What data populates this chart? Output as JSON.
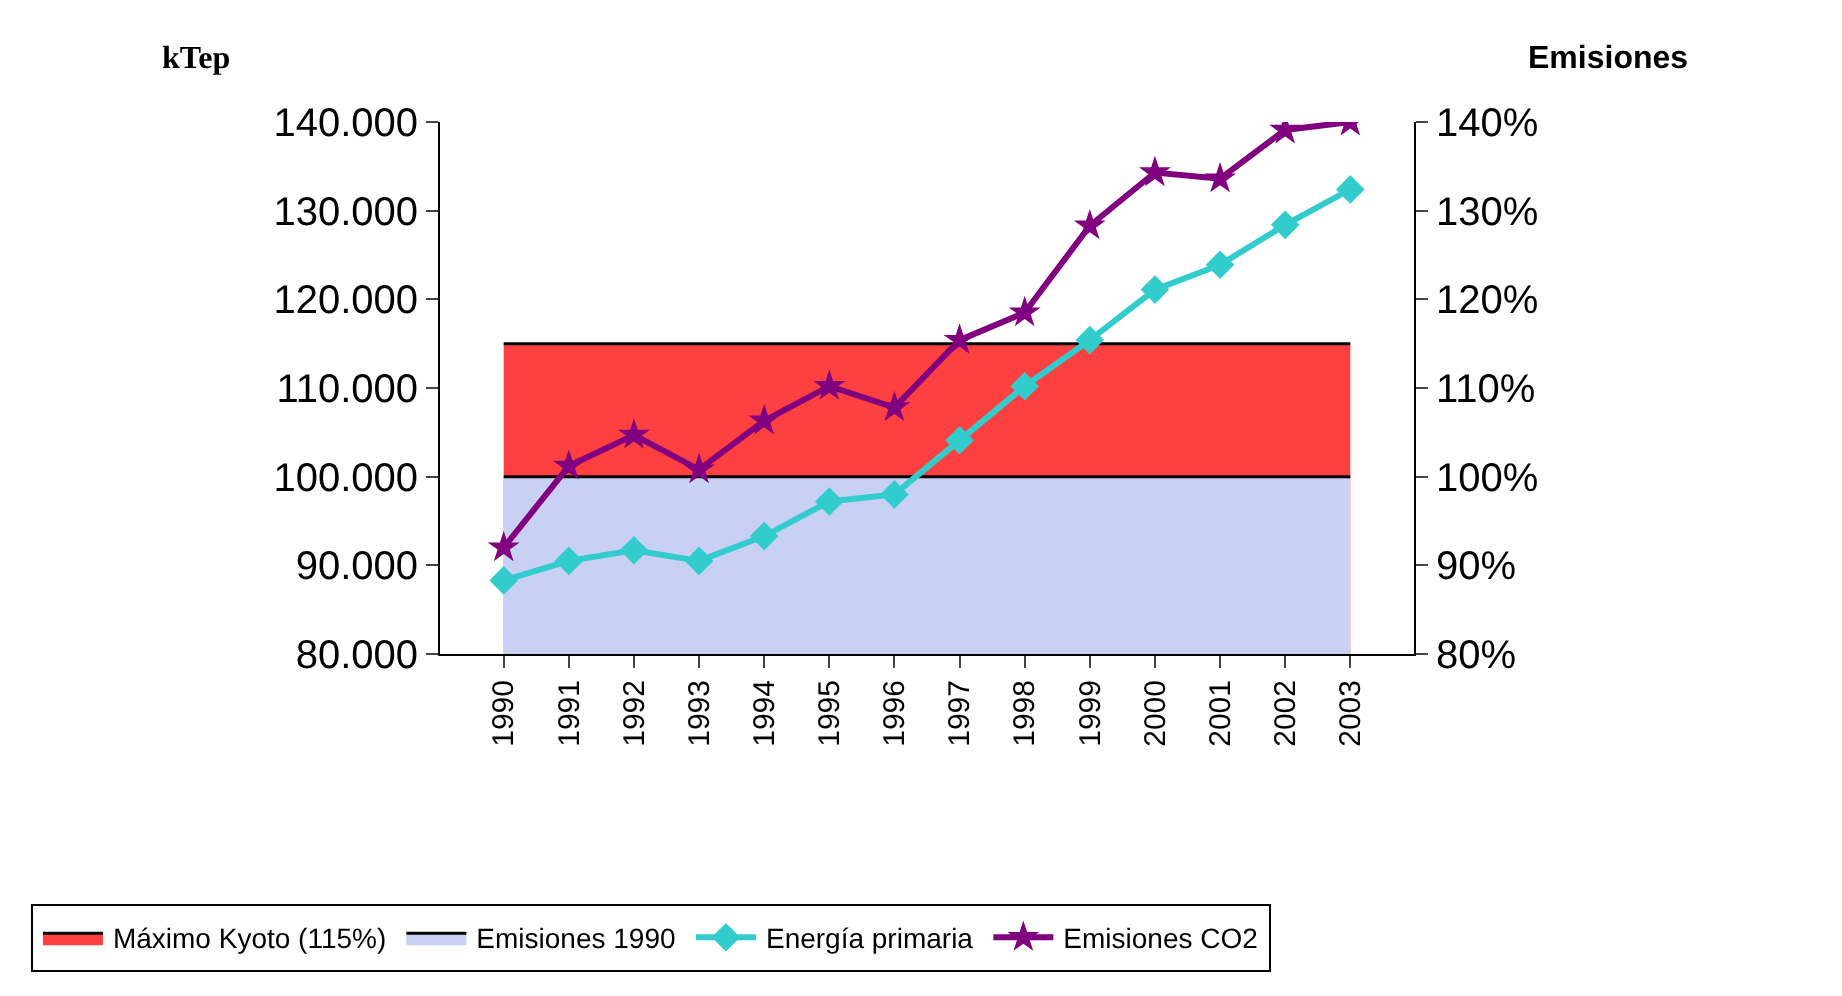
{
  "chart_data": {
    "type": "line",
    "ylabel": "kTep",
    "y2label": "Emisiones",
    "categories": [
      "1990",
      "1991",
      "1992",
      "1993",
      "1994",
      "1995",
      "1996",
      "1997",
      "1998",
      "1999",
      "2000",
      "2001",
      "2002",
      "2003"
    ],
    "series": [
      {
        "name": "Máximo Kyoto (115%)",
        "type": "area",
        "axis": "y2",
        "color": "#ff4040",
        "marker": "none",
        "values": [
          115,
          115,
          115,
          115,
          115,
          115,
          115,
          115,
          115,
          115,
          115,
          115,
          115,
          115
        ]
      },
      {
        "name": "Emisiones 1990",
        "type": "area",
        "axis": "y2",
        "color": "#c8d0f4",
        "marker": "none",
        "values": [
          100,
          100,
          100,
          100,
          100,
          100,
          100,
          100,
          100,
          100,
          100,
          100,
          100,
          100
        ]
      },
      {
        "name": "Energía primaria",
        "color": "#33cccc",
        "marker": "diamond",
        "values": [
          88300,
          90500,
          91700,
          90500,
          93300,
          97200,
          98000,
          104100,
          110200,
          115400,
          121100,
          123900,
          128400,
          132400
        ]
      },
      {
        "name": "Emisiones CO2",
        "axis": "y2",
        "color": "#800080",
        "marker": "star",
        "values": [
          92,
          101.2,
          104.7,
          100.8,
          106.3,
          110.2,
          107.8,
          115.4,
          118.5,
          128.3,
          134.3,
          133.6,
          139.1,
          140
        ]
      }
    ],
    "ylim": [
      80000,
      140000
    ],
    "yticks": [
      {
        "value": 80000,
        "label": "80.000"
      },
      {
        "value": 90000,
        "label": "90.000"
      },
      {
        "value": 100000,
        "label": "100.000"
      },
      {
        "value": 110000,
        "label": "110.000"
      },
      {
        "value": 120000,
        "label": "120.000"
      },
      {
        "value": 130000,
        "label": "130.000"
      },
      {
        "value": 140000,
        "label": "140.000"
      }
    ],
    "y2lim": [
      80,
      140
    ],
    "y2ticks": [
      {
        "value": 80,
        "label": "80%"
      },
      {
        "value": 90,
        "label": "90%"
      },
      {
        "value": 100,
        "label": "100%"
      },
      {
        "value": 110,
        "label": "110%"
      },
      {
        "value": 120,
        "label": "120%"
      },
      {
        "value": 130,
        "label": "130%"
      },
      {
        "value": 140,
        "label": "140%"
      }
    ],
    "grid": false,
    "legend": "bottom"
  }
}
